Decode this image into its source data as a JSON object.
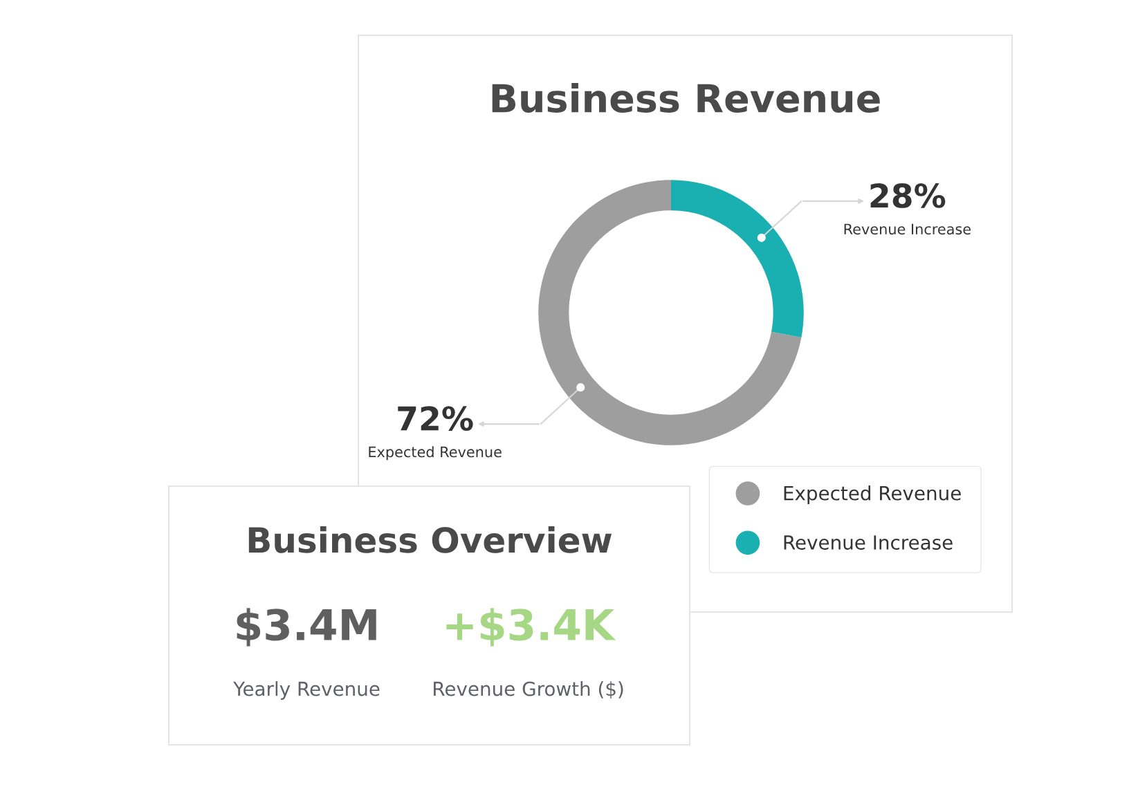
{
  "chart_data": [
    {
      "type": "donut",
      "title": "Business Revenue",
      "categories": [
        "Expected Revenue",
        "Revenue Increase"
      ],
      "values": [
        72,
        28
      ],
      "colors": [
        "#9d9e9d",
        "#1aafb1"
      ],
      "value_labels": [
        "72%",
        "28%"
      ],
      "legend": "bottom right"
    },
    {
      "type": "other",
      "title": "Business Overview",
      "categories": [
        "Yearly Revenue",
        "Revenue Growth ($)"
      ],
      "value_labels": [
        "$3.4M",
        "+$3.4K"
      ]
    }
  ]
}
